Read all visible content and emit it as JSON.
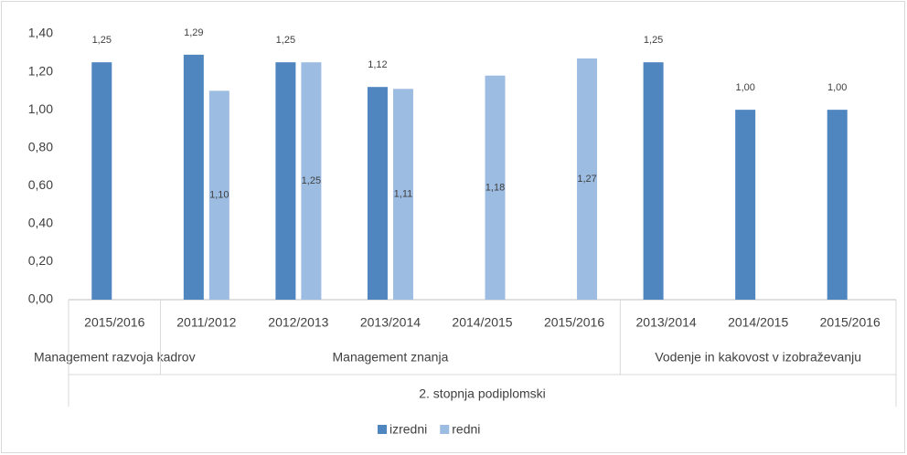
{
  "chart_data": {
    "type": "bar",
    "supergroup": "2. stopnja podiplomski",
    "groups": [
      {
        "name": "Management razvoja kadrov",
        "categories": [
          "2015/2016"
        ]
      },
      {
        "name": "Management znanja",
        "categories": [
          "2011/2012",
          "2012/2013",
          "2013/2014",
          "2014/2015",
          "2015/2016"
        ]
      },
      {
        "name": "Vodenje in kakovost v izobraževanju",
        "categories": [
          "2013/2014",
          "2014/2015",
          "2015/2016"
        ]
      }
    ],
    "series": [
      {
        "name": "izredni",
        "color": "#4f86bf",
        "label_position": "outside_end",
        "values": [
          1.25,
          1.29,
          1.25,
          1.12,
          null,
          null,
          1.25,
          1.0,
          1.0
        ],
        "value_labels": [
          "1,25",
          "1,29",
          "1,25",
          "1,12",
          null,
          null,
          "1,25",
          "1,00",
          "1,00"
        ]
      },
      {
        "name": "redni",
        "color": "#9cbce2",
        "label_position": "center",
        "values": [
          null,
          1.1,
          1.25,
          1.11,
          1.18,
          1.27,
          null,
          null,
          null
        ],
        "value_labels": [
          null,
          "1,10",
          "1,25",
          "1,11",
          "1,18",
          "1,27",
          null,
          null,
          null
        ]
      }
    ],
    "ylim": [
      0,
      1.4
    ],
    "yticks": [
      {
        "value": 0,
        "label": "0,00"
      },
      {
        "value": 0.2,
        "label": "0,20"
      },
      {
        "value": 0.4,
        "label": "0,40"
      },
      {
        "value": 0.6,
        "label": "0,60"
      },
      {
        "value": 0.8,
        "label": "0,80"
      },
      {
        "value": 1.0,
        "label": "1,00"
      },
      {
        "value": 1.2,
        "label": "1,20"
      },
      {
        "value": 1.4,
        "label": "1,40"
      }
    ],
    "grid": false,
    "legend": "bottom"
  }
}
